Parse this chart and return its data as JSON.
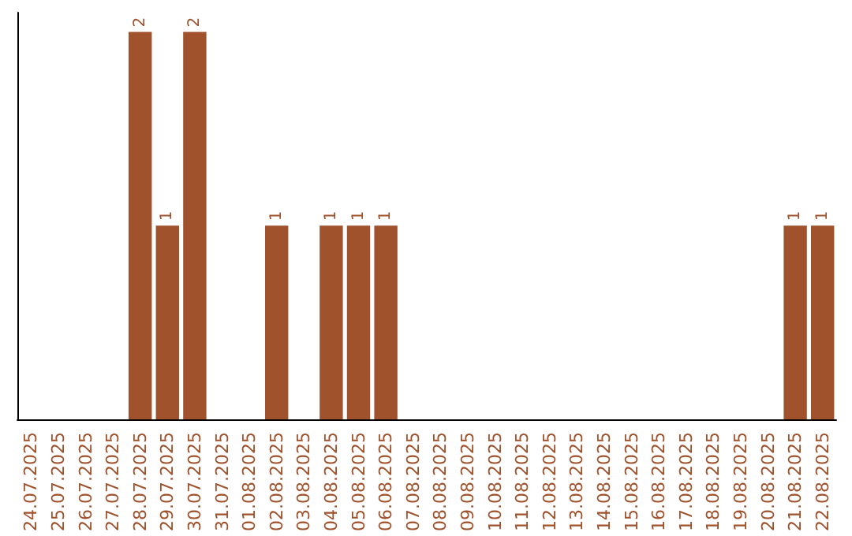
{
  "chart_data": {
    "type": "bar",
    "categories": [
      "24.07.2025",
      "25.07.2025",
      "26.07.2025",
      "27.07.2025",
      "28.07.2025",
      "29.07.2025",
      "30.07.2025",
      "31.07.2025",
      "01.08.2025",
      "02.08.2025",
      "03.08.2025",
      "04.08.2025",
      "05.08.2025",
      "06.08.2025",
      "07.08.2025",
      "08.08.2025",
      "09.08.2025",
      "10.08.2025",
      "11.08.2025",
      "12.08.2025",
      "13.08.2025",
      "14.08.2025",
      "15.08.2025",
      "16.08.2025",
      "17.08.2025",
      "18.08.2025",
      "19.08.2025",
      "20.08.2025",
      "21.08.2025",
      "22.08.2025"
    ],
    "values": [
      0,
      0,
      0,
      0,
      2,
      1,
      2,
      0,
      0,
      1,
      0,
      1,
      1,
      1,
      0,
      0,
      0,
      0,
      0,
      0,
      0,
      0,
      0,
      0,
      0,
      0,
      0,
      0,
      1,
      1
    ],
    "value_labels": [
      null,
      null,
      null,
      null,
      "2",
      "1",
      "2",
      null,
      null,
      "1",
      null,
      "1",
      "1",
      "1",
      null,
      null,
      null,
      null,
      null,
      null,
      null,
      null,
      null,
      null,
      null,
      null,
      null,
      null,
      "1",
      "1"
    ],
    "color": "#a0522d",
    "grid": false,
    "tick_labels": "x"
  }
}
